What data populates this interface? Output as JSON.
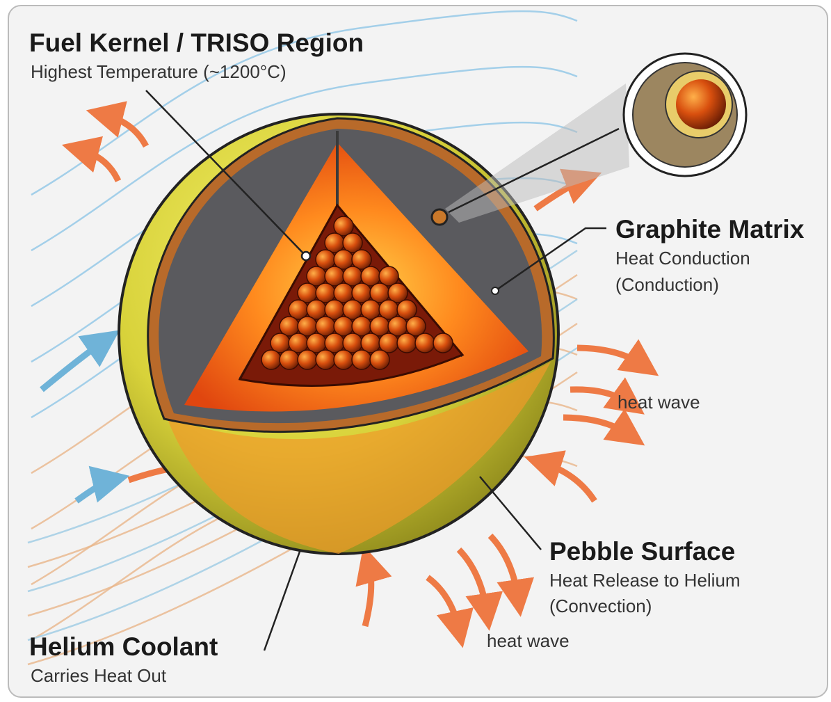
{
  "callouts": [
    {
      "title": "Fuel Kernel / TRISO Region",
      "lines": [
        "Highest Temperature (~1200°C)"
      ]
    },
    {
      "title": "Graphite Matrix",
      "lines": [
        "Heat Conduction",
        "(Conduction)"
      ]
    },
    {
      "title": "Pebble Surface",
      "lines": [
        "Heat Release to Helium",
        "(Convection)"
      ]
    },
    {
      "title": "Helium Coolant",
      "lines": [
        "Carries Heat Out"
      ]
    }
  ],
  "annotations": [
    "heat wave",
    "heat wave"
  ]
}
